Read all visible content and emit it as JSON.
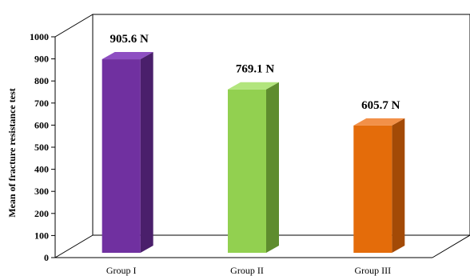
{
  "chart_data": {
    "type": "bar",
    "categories": [
      "Group I",
      "Group II",
      "Group III"
    ],
    "values": [
      905.6,
      769.1,
      605.7
    ],
    "data_labels": [
      "905.6 N",
      "769.1 N",
      "605.7 N"
    ],
    "ylabel": "Mean of fracture resistance test",
    "xlabel": "",
    "title": "",
    "ylim": [
      0,
      1000
    ],
    "yticks": [
      0,
      100,
      200,
      300,
      400,
      500,
      600,
      700,
      800,
      900,
      1000
    ],
    "style": "3d",
    "grid": false,
    "colors": {
      "front": [
        "#7030A0",
        "#92D050",
        "#E46C0A"
      ],
      "side": [
        "#4A1F6B",
        "#5E8C2E",
        "#A34A06"
      ],
      "top": [
        "#8E4FC2",
        "#B2E57D",
        "#F29048"
      ]
    }
  }
}
